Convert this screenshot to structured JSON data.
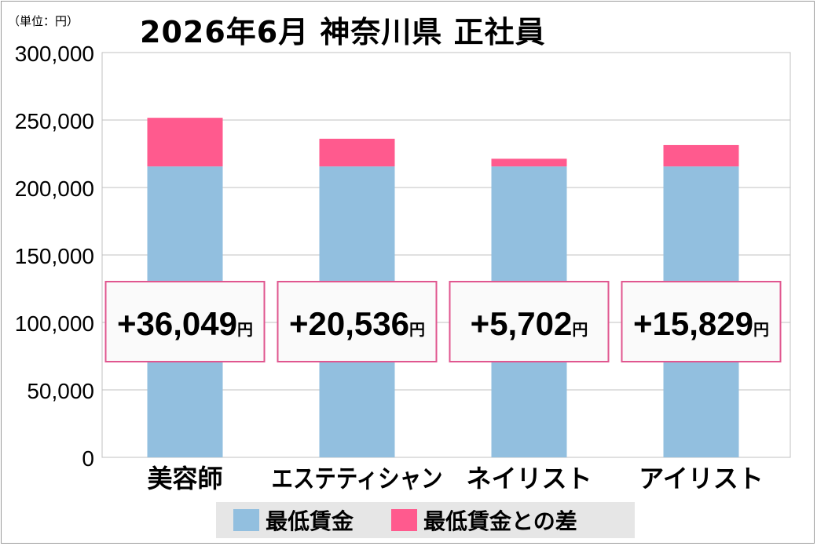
{
  "header": {
    "unit_label": "（単位：円）",
    "title": "2026年6月 神奈川県 正社員"
  },
  "colors": {
    "base": "#92bfdf",
    "diff": "#ff5a8e",
    "callout_border": "#e0568f",
    "grid": "#c0c0c0"
  },
  "chart_data": {
    "type": "bar",
    "stacked": true,
    "title": "2026年6月 神奈川県 正社員",
    "unit": "（単位：円）",
    "categories": [
      "美容師",
      "エステティシャン",
      "ネイリスト",
      "アイリスト"
    ],
    "series": [
      {
        "name": "最低賃金",
        "values": [
          215600,
          215600,
          215600,
          215600
        ]
      },
      {
        "name": "最低賃金との差",
        "values": [
          36049,
          20536,
          5702,
          15829
        ]
      }
    ],
    "annotations": [
      {
        "category": "美容師",
        "value": "+36,049",
        "unit": "円"
      },
      {
        "category": "エステティシャン",
        "value": "+20,536",
        "unit": "円"
      },
      {
        "category": "ネイリスト",
        "value": "+5,702",
        "unit": "円"
      },
      {
        "category": "アイリスト",
        "value": "+15,829",
        "unit": "円"
      }
    ],
    "yticks": [
      "0",
      "50,000",
      "100,000",
      "150,000",
      "200,000",
      "250,000",
      "300,000"
    ],
    "ylim": [
      0,
      300000
    ],
    "grid": true,
    "legend_position": "bottom"
  }
}
